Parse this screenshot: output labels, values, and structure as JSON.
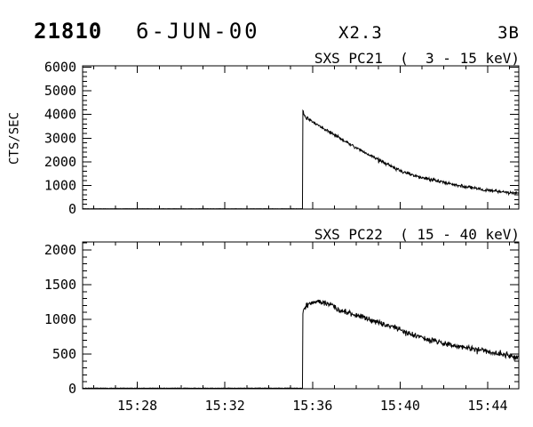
{
  "header": {
    "flare_number": "21810",
    "date": "6-JUN-00",
    "goes_class": "X2.3",
    "optical_class": "3B"
  },
  "chart_data": [
    {
      "type": "line",
      "title": "SXS PC21  (  3 - 15 keV)",
      "ylabel": "CTS/SEC",
      "ylim": [
        0,
        6060
      ],
      "yticks": [
        0,
        1000,
        2000,
        3000,
        4000,
        5000,
        6000
      ],
      "y_minor_step": 200,
      "x_unit": "minutes after 15:00",
      "xlim_minutes": [
        25.5,
        45.42
      ],
      "xticks_minutes": [
        28,
        32,
        36,
        40,
        44
      ],
      "xtick_labels": [
        "15:28",
        "15:32",
        "15:36",
        "15:40",
        "15:44"
      ],
      "show_xtick_labels": false,
      "x_minor_step_minutes": 1,
      "grid": false,
      "series": [
        {
          "name": "SXS PC21 counts",
          "pre_flare_level": 12,
          "flare_rise_minute": 35.56,
          "peak_value": 4200,
          "noise_amplitude": 55,
          "anchors": [
            [
              35.56,
              4200
            ],
            [
              35.62,
              3960
            ],
            [
              35.75,
              3870
            ],
            [
              36.0,
              3700
            ],
            [
              36.3,
              3520
            ],
            [
              36.7,
              3300
            ],
            [
              37.1,
              3080
            ],
            [
              37.5,
              2870
            ],
            [
              37.9,
              2640
            ],
            [
              38.3,
              2430
            ],
            [
              38.7,
              2240
            ],
            [
              39.1,
              2040
            ],
            [
              39.5,
              1860
            ],
            [
              40.0,
              1620
            ],
            [
              40.5,
              1460
            ],
            [
              41.0,
              1330
            ],
            [
              41.5,
              1230
            ],
            [
              42.0,
              1130
            ],
            [
              42.5,
              1030
            ],
            [
              43.0,
              940
            ],
            [
              43.6,
              850
            ],
            [
              44.2,
              770
            ],
            [
              44.8,
              710
            ],
            [
              45.42,
              660
            ]
          ]
        }
      ]
    },
    {
      "type": "line",
      "title": "SXS PC22  ( 15 - 40 keV)",
      "ylabel": "",
      "ylim": [
        0,
        2115
      ],
      "yticks": [
        0,
        500,
        1000,
        1500,
        2000
      ],
      "y_minor_step": 100,
      "x_unit": "minutes after 15:00",
      "xlim_minutes": [
        25.5,
        45.42
      ],
      "xticks_minutes": [
        28,
        32,
        36,
        40,
        44
      ],
      "xtick_labels": [
        "15:28",
        "15:32",
        "15:36",
        "15:40",
        "15:44"
      ],
      "show_xtick_labels": true,
      "x_minor_step_minutes": 1,
      "grid": false,
      "series": [
        {
          "name": "SXS PC22 counts",
          "pre_flare_level": 8,
          "flare_rise_minute": 35.56,
          "peak_value": 1250,
          "noise_amplitude": 32,
          "anchors": [
            [
              35.56,
              1110
            ],
            [
              35.7,
              1190
            ],
            [
              35.9,
              1230
            ],
            [
              36.2,
              1250
            ],
            [
              36.5,
              1240
            ],
            [
              36.8,
              1210
            ],
            [
              37.1,
              1150
            ],
            [
              37.5,
              1110
            ],
            [
              37.9,
              1070
            ],
            [
              38.3,
              1030
            ],
            [
              38.7,
              985
            ],
            [
              39.1,
              945
            ],
            [
              39.5,
              905
            ],
            [
              39.9,
              860
            ],
            [
              40.4,
              800
            ],
            [
              41.0,
              735
            ],
            [
              41.5,
              695
            ],
            [
              42.0,
              650
            ],
            [
              42.6,
              620
            ],
            [
              43.2,
              585
            ],
            [
              43.8,
              550
            ],
            [
              44.4,
              510
            ],
            [
              45.0,
              470
            ],
            [
              45.42,
              440
            ]
          ]
        }
      ]
    }
  ]
}
